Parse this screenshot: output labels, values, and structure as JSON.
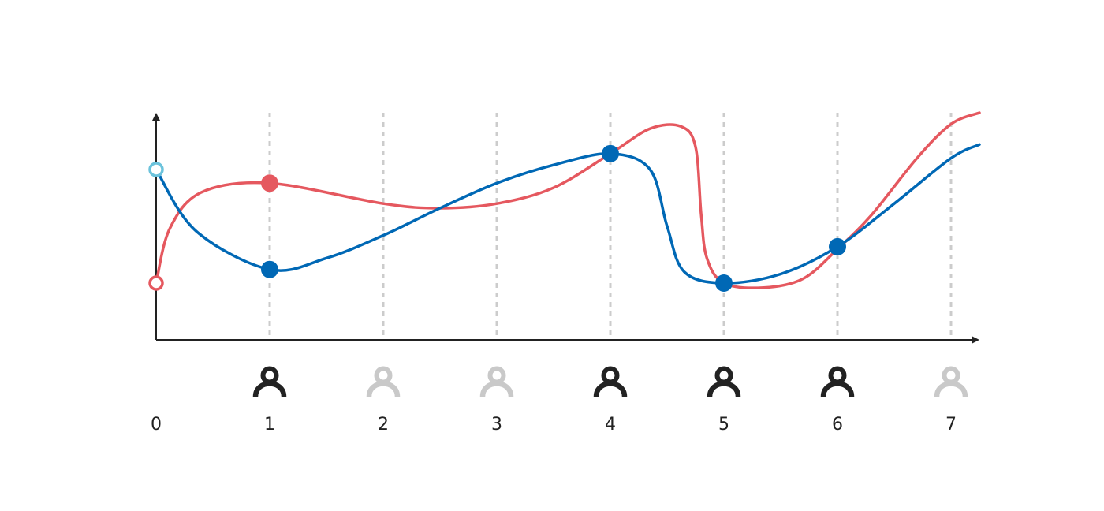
{
  "chart_data": {
    "type": "line",
    "x_ticks": [
      "0",
      "1",
      "2",
      "3",
      "4",
      "5",
      "6",
      "7"
    ],
    "xlim": [
      0,
      7.25
    ],
    "ylim": [
      0,
      10
    ],
    "grid": "vertical-dashed",
    "title": "",
    "xlabel": "",
    "ylabel": "",
    "person_icons": [
      {
        "x": 1,
        "state": "active"
      },
      {
        "x": 2,
        "state": "inactive"
      },
      {
        "x": 3,
        "state": "inactive"
      },
      {
        "x": 4,
        "state": "active"
      },
      {
        "x": 5,
        "state": "active"
      },
      {
        "x": 6,
        "state": "active"
      },
      {
        "x": 7,
        "state": "inactive"
      }
    ],
    "series": [
      {
        "color": "#e5585f",
        "curve": [
          [
            0,
            2.5
          ],
          [
            0.12,
            4.9
          ],
          [
            0.4,
            6.5
          ],
          [
            1,
            6.9
          ],
          [
            2,
            6.0
          ],
          [
            2.5,
            5.8
          ],
          [
            3,
            6.0
          ],
          [
            3.5,
            6.7
          ],
          [
            4,
            8.2
          ],
          [
            4.35,
            9.3
          ],
          [
            4.62,
            9.4
          ],
          [
            4.75,
            8.5
          ],
          [
            4.8,
            5.5
          ],
          [
            4.85,
            3.6
          ],
          [
            5,
            2.5
          ],
          [
            5.35,
            2.3
          ],
          [
            5.7,
            2.7
          ],
          [
            6,
            4.0
          ],
          [
            6.3,
            5.5
          ],
          [
            6.7,
            8.0
          ],
          [
            7,
            9.5
          ],
          [
            7.25,
            10.0
          ]
        ],
        "markers": [
          {
            "x": 0,
            "y": 2.5,
            "style": "hollow"
          },
          {
            "x": 1,
            "y": 6.9,
            "style": "filled"
          }
        ]
      },
      {
        "color": "#0068b5",
        "curve": [
          [
            0,
            7.5
          ],
          [
            0.35,
            4.8
          ],
          [
            1,
            3.1
          ],
          [
            1.5,
            3.6
          ],
          [
            2,
            4.6
          ],
          [
            2.5,
            5.8
          ],
          [
            3,
            6.9
          ],
          [
            3.5,
            7.7
          ],
          [
            4,
            8.2
          ],
          [
            4.35,
            7.5
          ],
          [
            4.5,
            5.0
          ],
          [
            4.65,
            3.0
          ],
          [
            5,
            2.5
          ],
          [
            5.5,
            2.9
          ],
          [
            6,
            4.1
          ],
          [
            6.5,
            6.0
          ],
          [
            7,
            8.0
          ],
          [
            7.25,
            8.6
          ]
        ],
        "markers": [
          {
            "x": 0,
            "y": 7.5,
            "style": "hollow",
            "color": "#6cc3dc"
          },
          {
            "x": 1,
            "y": 3.1,
            "style": "filled"
          },
          {
            "x": 4,
            "y": 8.2,
            "style": "filled"
          },
          {
            "x": 5,
            "y": 2.5,
            "style": "filled"
          },
          {
            "x": 6,
            "y": 4.1,
            "style": "filled"
          }
        ]
      }
    ],
    "colors": {
      "axis": "#222222",
      "grid": "#cccccc",
      "icon_active": "#222222",
      "icon_inactive": "#c9c9c9"
    }
  }
}
